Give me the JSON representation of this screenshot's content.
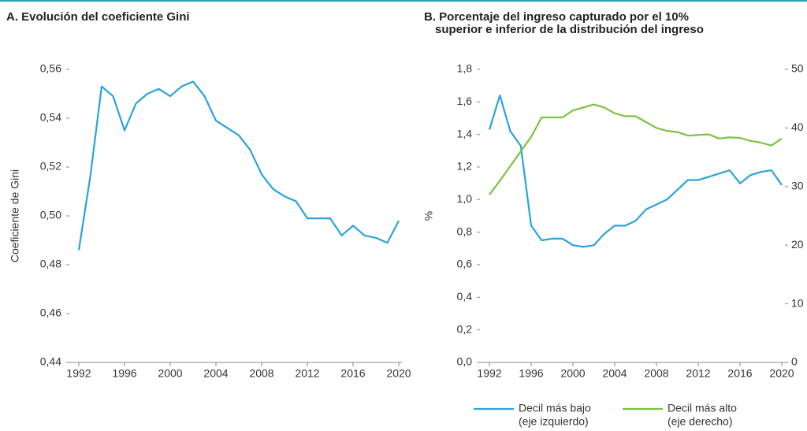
{
  "chart_data": [
    {
      "type": "line",
      "title": "A. Evolución del coeficiente Gini",
      "ylabel": "Coeficiente de Gini",
      "x": [
        1992,
        1993,
        1994,
        1995,
        1996,
        1997,
        1998,
        1999,
        2000,
        2001,
        2002,
        2003,
        2004,
        2005,
        2006,
        2007,
        2008,
        2009,
        2010,
        2011,
        2012,
        2013,
        2014,
        2015,
        2016,
        2017,
        2018,
        2019,
        2020
      ],
      "series": [
        {
          "name": "Coeficiente Gini",
          "color": "#29a3dd",
          "values": [
            0.486,
            0.516,
            0.553,
            0.549,
            0.535,
            0.546,
            0.55,
            0.552,
            0.549,
            0.553,
            0.555,
            0.549,
            0.539,
            0.536,
            0.533,
            0.527,
            0.517,
            0.511,
            0.508,
            0.506,
            0.499,
            0.499,
            0.499,
            0.492,
            0.496,
            0.492,
            0.491,
            0.489,
            0.498
          ]
        }
      ],
      "xlim": [
        1992,
        2020
      ],
      "xticks": [
        1992,
        1996,
        2000,
        2004,
        2008,
        2012,
        2016,
        2020
      ],
      "ylim": [
        0.44,
        0.56
      ],
      "yticks": [
        {
          "value": 0.44,
          "label": "0,44"
        },
        {
          "value": 0.46,
          "label": "0,46"
        },
        {
          "value": 0.48,
          "label": "0,48"
        },
        {
          "value": 0.5,
          "label": "0,50"
        },
        {
          "value": 0.52,
          "label": "0,52"
        },
        {
          "value": 0.54,
          "label": "0,54"
        },
        {
          "value": 0.56,
          "label": "0,56"
        }
      ],
      "grid": false
    },
    {
      "type": "line",
      "title": [
        "B. Porcentaje del ingreso capturado por el 10%",
        "superior e inferior de la distribución del ingreso"
      ],
      "ylabel": "%",
      "x": [
        1992,
        1993,
        1994,
        1995,
        1996,
        1997,
        1998,
        1999,
        2000,
        2001,
        2002,
        2003,
        2004,
        2005,
        2006,
        2007,
        2008,
        2009,
        2010,
        2011,
        2012,
        2013,
        2014,
        2015,
        2016,
        2017,
        2018,
        2019,
        2020
      ],
      "series": [
        {
          "name": "Decil más bajo",
          "note": "(eje izquierdo)",
          "color": "#29a3dd",
          "values": [
            1.43,
            1.64,
            1.42,
            1.33,
            0.84,
            0.75,
            0.76,
            0.76,
            0.72,
            0.71,
            0.72,
            0.79,
            0.84,
            0.84,
            0.87,
            0.94,
            0.97,
            1.0,
            1.06,
            1.12,
            1.12,
            1.14,
            1.16,
            1.18,
            1.1,
            1.15,
            1.17,
            1.18,
            1.09
          ]
        },
        {
          "name": "Decil más alto",
          "note": "(eje derecho)",
          "color": "#7dc242",
          "axis": "y2",
          "values": [
            28.6,
            31,
            33.5,
            36,
            38.5,
            41.8,
            41.8,
            41.8,
            43,
            43.5,
            44,
            43.5,
            42.5,
            42,
            42,
            41,
            40,
            39.5,
            39.3,
            38.7,
            38.8,
            38.9,
            38.2,
            38.4,
            38.3,
            37.8,
            37.5,
            37.0,
            38.2
          ]
        }
      ],
      "xlim": [
        1992,
        2020
      ],
      "xticks": [
        1992,
        1996,
        2000,
        2004,
        2008,
        2012,
        2016,
        2020
      ],
      "ylim": [
        0,
        1.8
      ],
      "yticks": [
        {
          "value": 0,
          "label": "0,0"
        },
        {
          "value": 0.2,
          "label": "0,2"
        },
        {
          "value": 0.4,
          "label": "0,4"
        },
        {
          "value": 0.6,
          "label": "0,6"
        },
        {
          "value": 0.8,
          "label": "0,8"
        },
        {
          "value": 1.0,
          "label": "1,0"
        },
        {
          "value": 1.2,
          "label": "1,2"
        },
        {
          "value": 1.4,
          "label": "1,4"
        },
        {
          "value": 1.6,
          "label": "1,6"
        },
        {
          "value": 1.8,
          "label": "1,8"
        }
      ],
      "y2lim": [
        0,
        50
      ],
      "y2ticks": [
        0,
        10,
        20,
        30,
        40,
        50
      ],
      "grid": false
    }
  ]
}
